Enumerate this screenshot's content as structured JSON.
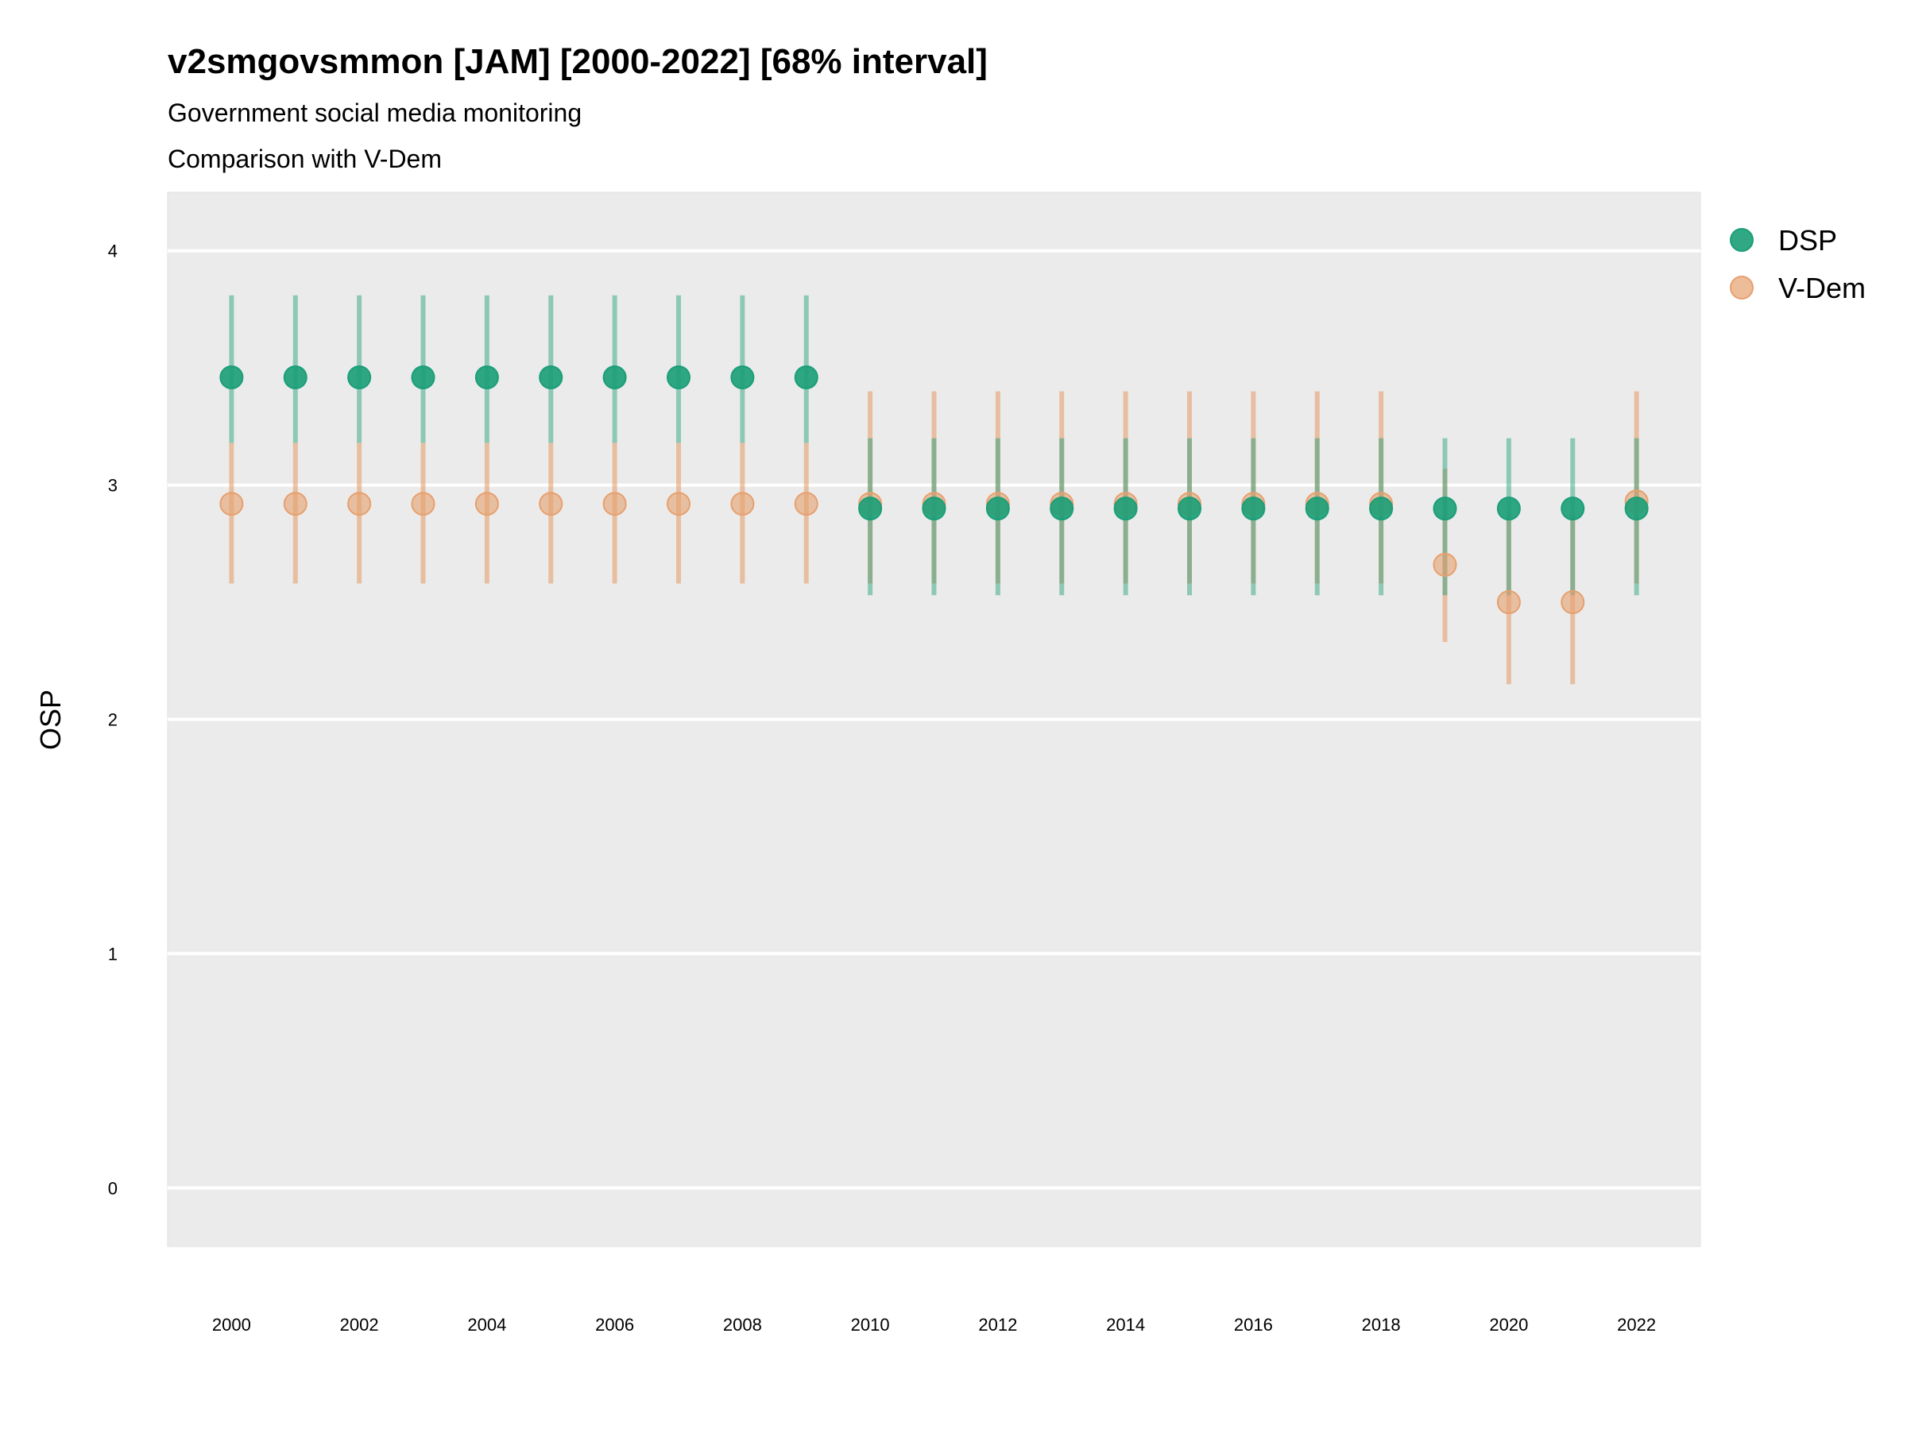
{
  "chart_data": {
    "type": "scatter",
    "title": "v2smgovsmmon [JAM] [2000-2022] [68% interval]",
    "subtitle": "Government social media monitoring",
    "subtitle2": "Comparison with V-Dem",
    "xlabel": "",
    "ylabel": "OSP",
    "xlim": [
      1999.0,
      2023.0
    ],
    "ylim": [
      -0.25,
      4.25
    ],
    "yticks": [
      0,
      1,
      2,
      3,
      4
    ],
    "xticks": [
      "2000",
      "2002",
      "2004",
      "2006",
      "2008",
      "2010",
      "2012",
      "2014",
      "2016",
      "2018",
      "2020",
      "2022"
    ],
    "grid": true,
    "legend_position": "right",
    "colors": {
      "DSP": "#1b9e77",
      "V-Dem": "#e6a06e",
      "panel": "#ebebeb",
      "grid": "#ffffff"
    },
    "x": [
      2000,
      2001,
      2002,
      2003,
      2004,
      2005,
      2006,
      2007,
      2008,
      2009,
      2010,
      2011,
      2012,
      2013,
      2014,
      2015,
      2016,
      2017,
      2018,
      2019,
      2020,
      2021,
      2022
    ],
    "series": [
      {
        "name": "V-Dem",
        "values": [
          2.92,
          2.92,
          2.92,
          2.92,
          2.92,
          2.92,
          2.92,
          2.92,
          2.92,
          2.92,
          2.92,
          2.92,
          2.92,
          2.92,
          2.92,
          2.92,
          2.92,
          2.92,
          2.92,
          2.66,
          2.5,
          2.5,
          2.93
        ],
        "lower": [
          2.58,
          2.58,
          2.58,
          2.58,
          2.58,
          2.58,
          2.58,
          2.58,
          2.58,
          2.58,
          2.58,
          2.58,
          2.58,
          2.58,
          2.58,
          2.58,
          2.58,
          2.58,
          2.58,
          2.33,
          2.15,
          2.15,
          2.58
        ],
        "upper": [
          3.18,
          3.18,
          3.18,
          3.18,
          3.18,
          3.18,
          3.18,
          3.18,
          3.18,
          3.18,
          3.4,
          3.4,
          3.4,
          3.4,
          3.4,
          3.4,
          3.4,
          3.4,
          3.4,
          3.07,
          2.88,
          2.88,
          3.4
        ]
      },
      {
        "name": "DSP",
        "values": [
          3.46,
          3.46,
          3.46,
          3.46,
          3.46,
          3.46,
          3.46,
          3.46,
          3.46,
          3.46,
          2.9,
          2.9,
          2.9,
          2.9,
          2.9,
          2.9,
          2.9,
          2.9,
          2.9,
          2.9,
          2.9,
          2.9,
          2.9
        ],
        "lower": [
          3.18,
          3.18,
          3.18,
          3.18,
          3.18,
          3.18,
          3.18,
          3.18,
          3.18,
          3.18,
          2.53,
          2.53,
          2.53,
          2.53,
          2.53,
          2.53,
          2.53,
          2.53,
          2.53,
          2.53,
          2.53,
          2.53,
          2.53
        ],
        "upper": [
          3.81,
          3.81,
          3.81,
          3.81,
          3.81,
          3.81,
          3.81,
          3.81,
          3.81,
          3.81,
          3.2,
          3.2,
          3.2,
          3.2,
          3.2,
          3.2,
          3.2,
          3.2,
          3.2,
          3.2,
          3.2,
          3.2,
          3.2
        ]
      }
    ],
    "legend": [
      "DSP",
      "V-Dem"
    ]
  }
}
